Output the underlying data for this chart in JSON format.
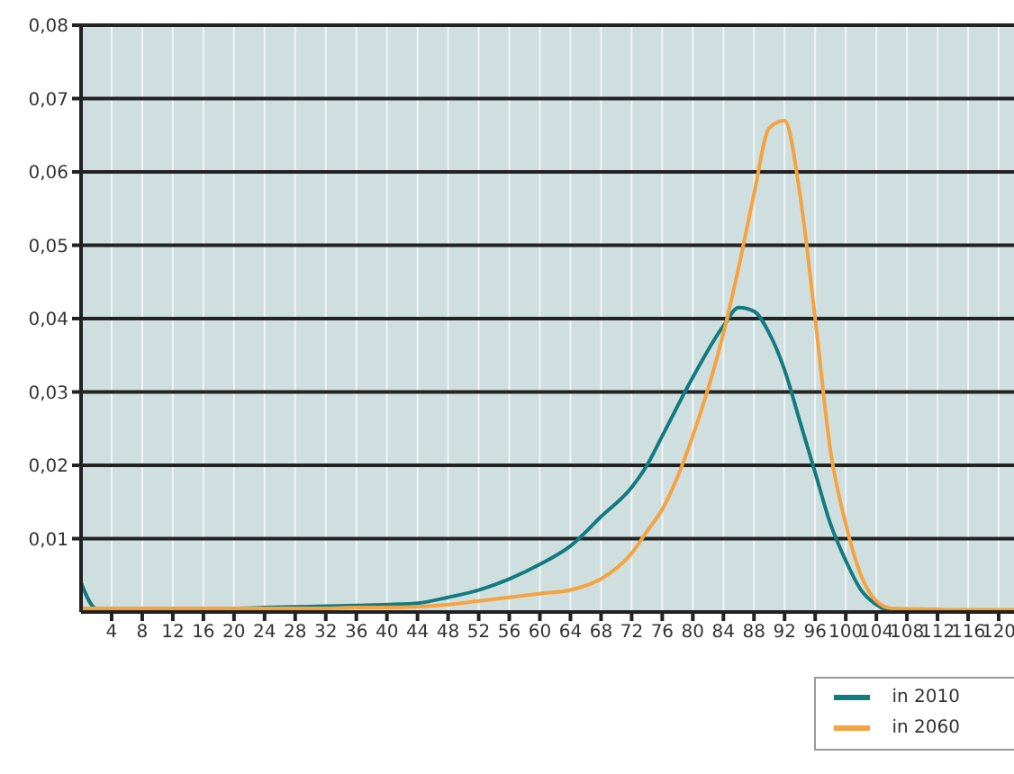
{
  "chart_data": {
    "type": "line",
    "x": [
      0,
      2,
      4,
      8,
      12,
      16,
      20,
      24,
      28,
      32,
      36,
      40,
      44,
      48,
      52,
      56,
      60,
      64,
      68,
      72,
      74,
      76,
      80,
      84,
      86,
      88,
      90,
      92,
      94,
      96,
      98,
      100,
      102,
      104,
      106,
      110,
      116,
      122
    ],
    "series": [
      {
        "name": "in 2010",
        "color": "#137a7f",
        "values": [
          0.004,
          0.0005,
          0.0005,
          0.0005,
          0.0005,
          0.0005,
          0.0005,
          0.0006,
          0.0007,
          0.0008,
          0.0009,
          0.001,
          0.0012,
          0.002,
          0.003,
          0.0045,
          0.0065,
          0.009,
          0.013,
          0.017,
          0.02,
          0.024,
          0.032,
          0.039,
          0.0415,
          0.041,
          0.038,
          0.033,
          0.026,
          0.019,
          0.012,
          0.007,
          0.003,
          0.001,
          0,
          null,
          null,
          null
        ]
      },
      {
        "name": "in 2060",
        "color": "#f4a340",
        "values": [
          0.0005,
          0.0005,
          0.0005,
          0.0005,
          0.0005,
          0.0005,
          0.0005,
          0.0005,
          0.0005,
          0.0005,
          0.0006,
          0.0006,
          0.0007,
          0.001,
          0.0015,
          0.002,
          0.0025,
          0.003,
          0.0045,
          0.008,
          0.011,
          0.014,
          0.024,
          0.038,
          0.047,
          0.057,
          0.066,
          0.067,
          0.057,
          0.04,
          0.022,
          0.012,
          0.005,
          0.0015,
          0.0005,
          0.0004,
          0.0003,
          0.0003
        ]
      }
    ],
    "xlim": [
      0,
      122
    ],
    "xticks": [
      4,
      8,
      12,
      16,
      20,
      24,
      28,
      32,
      36,
      40,
      44,
      48,
      52,
      56,
      60,
      64,
      68,
      72,
      76,
      80,
      84,
      88,
      92,
      96,
      100,
      104,
      108,
      112,
      116,
      120
    ],
    "ylim": [
      0,
      0.08
    ],
    "yticks": [
      {
        "value": 0.01,
        "label": "0,01"
      },
      {
        "value": 0.02,
        "label": "0,02"
      },
      {
        "value": 0.03,
        "label": "0,03"
      },
      {
        "value": 0.04,
        "label": "0,04"
      },
      {
        "value": 0.05,
        "label": "0,05"
      },
      {
        "value": 0.06,
        "label": "0,06"
      },
      {
        "value": 0.07,
        "label": "0,07"
      },
      {
        "value": 0.08,
        "label": "0,08"
      }
    ],
    "grid": true,
    "legend": "bottom right",
    "marker": "none",
    "line_style": "solid"
  }
}
